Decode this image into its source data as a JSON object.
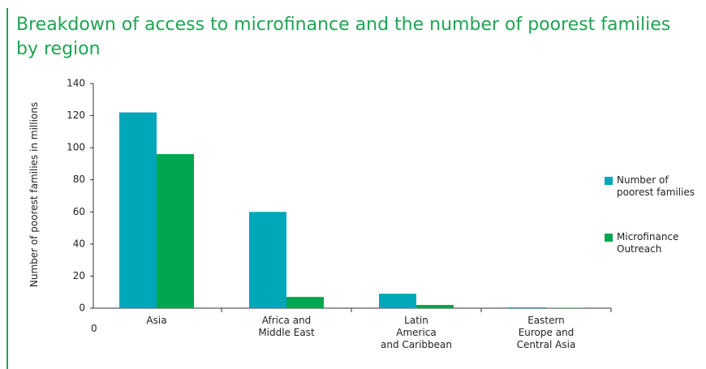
{
  "chart_data": {
    "type": "bar",
    "title": "Breakdown of access to microfinance and the number of poorest families by region",
    "y_label": "Number of poorest families in millions",
    "x_origin_label": "0",
    "categories": [
      "Asia",
      "Africa and\nMiddle East",
      "Latin\nAmerica\nand Caribbean",
      "Eastern\nEurope and\nCentral Asia"
    ],
    "series": [
      {
        "name": "Number of\npoorest families",
        "color": "#00a7b8",
        "values": [
          122,
          60,
          9,
          0.5
        ]
      },
      {
        "name": "Microfinance\nOutreach",
        "color": "#00a651",
        "values": [
          96,
          7,
          2,
          0.2
        ]
      }
    ],
    "ylim": [
      0,
      140
    ],
    "yticks": [
      0,
      20,
      40,
      60,
      80,
      100,
      120,
      140
    ],
    "legend": "right"
  }
}
